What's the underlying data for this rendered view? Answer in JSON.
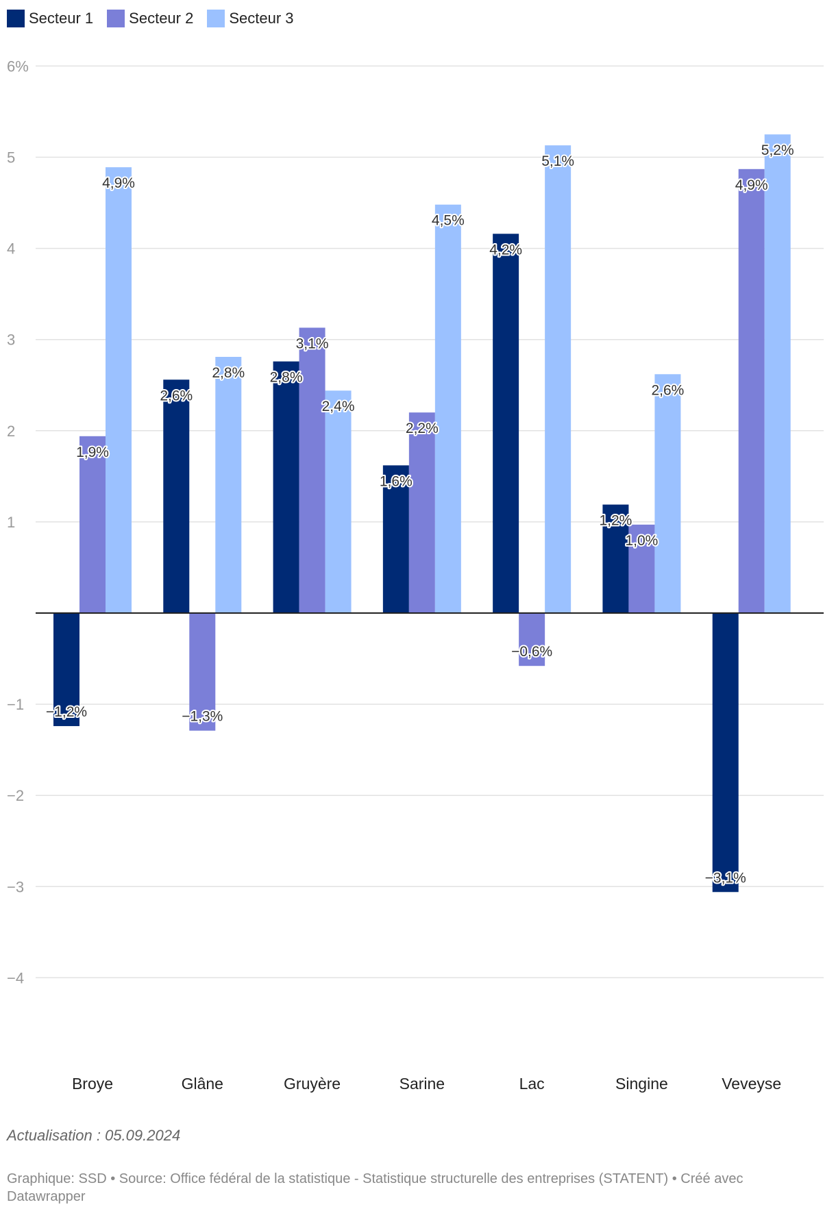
{
  "chart_data": {
    "type": "bar",
    "categories": [
      "Broye",
      "Glâne",
      "Gruyère",
      "Sarine",
      "Lac",
      "Singine",
      "Veveyse"
    ],
    "series": [
      {
        "name": "Secteur 1",
        "color": "#002a75",
        "values": [
          -1.24,
          2.56,
          2.76,
          1.62,
          4.16,
          1.19,
          -3.06
        ],
        "labels": [
          "−1,2%",
          "2,6%",
          "2,8%",
          "1,6%",
          "4,2%",
          "1,2%",
          "−3,1%"
        ]
      },
      {
        "name": "Secteur 2",
        "color": "#7b7fd8",
        "values": [
          1.94,
          -1.29,
          3.13,
          2.2,
          -0.58,
          0.97,
          4.87
        ],
        "labels": [
          "1,9%",
          "−1,3%",
          "3,1%",
          "2,2%",
          "−0,6%",
          "1,0%",
          "4,9%"
        ]
      },
      {
        "name": "Secteur 3",
        "color": "#9bc1ff",
        "values": [
          4.89,
          2.81,
          2.44,
          4.48,
          5.13,
          2.62,
          5.25
        ],
        "labels": [
          "4,9%",
          "2,8%",
          "2,4%",
          "4,5%",
          "5,1%",
          "2,6%",
          "5,2%"
        ]
      }
    ],
    "yticks": [
      6,
      5,
      4,
      3,
      2,
      1,
      -1,
      -2,
      -3,
      -4
    ],
    "ytick_labels": [
      "6%",
      "5",
      "4",
      "3",
      "2",
      "1",
      "−1",
      "−2",
      "−3",
      "−4"
    ],
    "ylim": [
      -4.5,
      6
    ],
    "grid": true,
    "legend_position": "top-left",
    "title": "",
    "xlabel": "",
    "ylabel": ""
  },
  "update_note": "Actualisation : 05.09.2024",
  "footer": "Graphique: SSD • Source: Office fédéral de la statistique - Statistique structurelle des entreprises (STATENT) • Créé avec Datawrapper"
}
